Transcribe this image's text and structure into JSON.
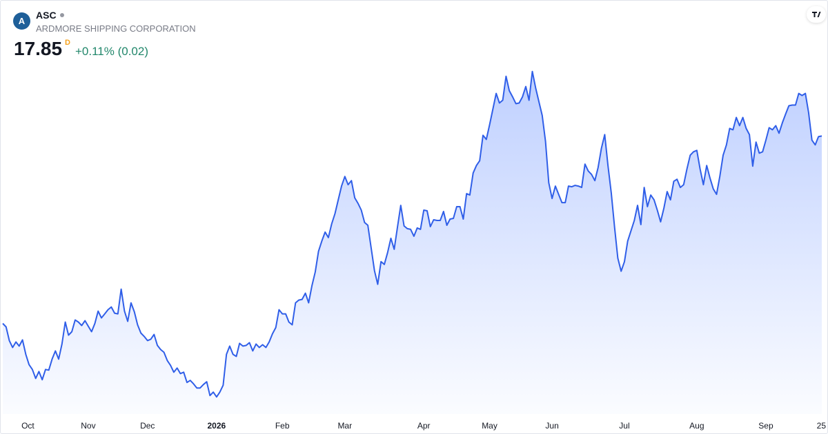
{
  "header": {
    "symbol": "ASC",
    "name": "ARDMORE SHIPPING CORPORATION",
    "price": "17.85",
    "interval": "D",
    "change": "+0.11% (0.02)"
  },
  "chart_data": {
    "type": "area",
    "color": "#2f5ee8",
    "values": [
      12.39,
      12.29,
      11.89,
      11.69,
      11.85,
      11.73,
      11.91,
      11.49,
      11.19,
      11.05,
      10.79,
      10.99,
      10.75,
      11.05,
      11.03,
      11.35,
      11.59,
      11.35,
      11.79,
      12.43,
      12.05,
      12.15,
      12.49,
      12.43,
      12.33,
      12.47,
      12.31,
      12.15,
      12.39,
      12.75,
      12.55,
      12.67,
      12.79,
      12.87,
      12.69,
      12.67,
      13.39,
      12.75,
      12.45,
      12.99,
      12.73,
      12.35,
      12.11,
      12.01,
      11.89,
      11.93,
      12.07,
      11.75,
      11.63,
      11.55,
      11.31,
      11.17,
      10.97,
      11.09,
      10.93,
      10.97,
      10.67,
      10.73,
      10.63,
      10.51,
      10.51,
      10.61,
      10.69,
      10.29,
      10.39,
      10.25,
      10.39,
      10.59,
      11.49,
      11.73,
      11.49,
      11.43,
      11.81,
      11.73,
      11.75,
      11.83,
      11.59,
      11.79,
      11.69,
      11.77,
      11.69,
      11.85,
      12.09,
      12.27,
      12.79,
      12.67,
      12.67,
      12.43,
      12.35,
      12.99,
      13.07,
      13.09,
      13.27,
      12.99,
      13.49,
      13.89,
      14.49,
      14.79,
      15.05,
      14.89,
      15.29,
      15.59,
      15.99,
      16.39,
      16.67,
      16.43,
      16.55,
      16.05,
      15.89,
      15.69,
      15.33,
      15.25,
      14.59,
      13.93,
      13.53,
      14.19,
      14.11,
      14.45,
      14.87,
      14.55,
      15.19,
      15.83,
      15.23,
      15.15,
      15.13,
      14.93,
      15.17,
      15.13,
      15.69,
      15.67,
      15.21,
      15.41,
      15.39,
      15.39,
      15.65,
      15.25,
      15.43,
      15.45,
      15.79,
      15.79,
      15.43,
      16.17,
      16.13,
      16.77,
      16.99,
      17.13,
      17.87,
      17.75,
      18.17,
      18.63,
      19.09,
      18.81,
      18.89,
      19.59,
      19.17,
      18.99,
      18.79,
      18.81,
      18.99,
      19.29,
      18.89,
      19.73,
      19.25,
      18.85,
      18.45,
      17.69,
      16.49,
      16.03,
      16.39,
      16.15,
      15.91,
      15.91,
      16.39,
      16.37,
      16.41,
      16.39,
      16.35,
      17.03,
      16.83,
      16.73,
      16.55,
      16.93,
      17.49,
      17.89,
      16.99,
      16.19,
      15.19,
      14.29,
      13.91,
      14.19,
      14.79,
      15.09,
      15.39,
      15.83,
      15.27,
      16.35,
      15.79,
      16.13,
      15.99,
      15.69,
      15.35,
      15.75,
      16.23,
      15.99,
      16.53,
      16.59,
      16.35,
      16.43,
      16.89,
      17.29,
      17.39,
      17.43,
      16.89,
      16.43,
      16.99,
      16.63,
      16.31,
      16.15,
      16.67,
      17.29,
      17.59,
      18.07,
      18.03,
      18.39,
      18.15,
      18.39,
      18.07,
      17.89,
      16.97,
      17.67,
      17.35,
      17.39,
      17.73,
      18.09,
      18.03,
      18.15,
      17.93,
      18.23,
      18.49,
      18.73,
      18.75,
      18.75,
      19.09,
      19.03,
      19.09,
      18.53,
      17.73,
      17.59,
      17.83,
      17.85
    ],
    "ylim": [
      9.19,
      21.79
    ],
    "xticks": [
      {
        "value": 4,
        "label": "Oct"
      },
      {
        "value": 26,
        "label": "Nov"
      },
      {
        "value": 44,
        "label": "Dec"
      },
      {
        "value": 65,
        "label": "2026"
      },
      {
        "value": 85,
        "label": "Feb"
      },
      {
        "value": 104,
        "label": "Mar"
      },
      {
        "value": 128,
        "label": "Apr"
      },
      {
        "value": 148,
        "label": "May"
      },
      {
        "value": 167,
        "label": "Jun"
      },
      {
        "value": 189,
        "label": "Jul"
      },
      {
        "value": 211,
        "label": "Aug"
      },
      {
        "value": 232,
        "label": "Sep"
      },
      {
        "value": 249,
        "label": "25"
      }
    ]
  }
}
